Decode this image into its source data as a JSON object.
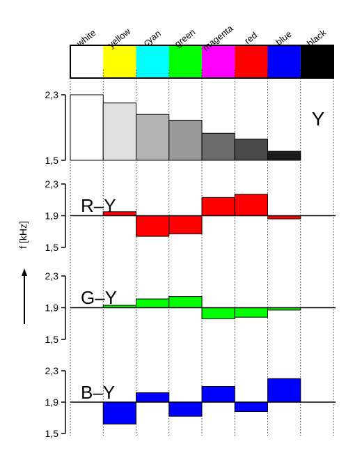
{
  "chart_data": {
    "type": "bar",
    "categories": [
      "white",
      "yellow",
      "cyan",
      "green",
      "magenta",
      "red",
      "blue",
      "black"
    ],
    "swatch_colors": [
      "#ffffff",
      "#ffff00",
      "#00ffff",
      "#00ff00",
      "#ff00ff",
      "#ff0000",
      "#0000ff",
      "#000000"
    ],
    "ylabel": "f [kHz]",
    "panels": [
      {
        "name": "Y",
        "label": "Y",
        "baseline": 1.5,
        "ylim": [
          1.5,
          2.3
        ],
        "yticks": [
          "2,3",
          "1,5"
        ],
        "values": [
          2.3,
          2.2,
          2.06,
          1.99,
          1.83,
          1.76,
          1.61,
          1.5
        ],
        "colors": [
          "#ffffff",
          "#e0e0e0",
          "#b3b3b3",
          "#999999",
          "#6b6b6b",
          "#4a4a4a",
          "#1c1c1c",
          "#000000"
        ]
      },
      {
        "name": "R-Y",
        "label": "R–Y",
        "baseline": 1.9,
        "ylim": [
          1.5,
          2.3
        ],
        "yticks": [
          "2,3",
          "1,9",
          "1,5"
        ],
        "values": [
          1.9,
          1.95,
          1.64,
          1.67,
          2.13,
          2.17,
          1.86,
          1.9
        ],
        "color": "#ff0000"
      },
      {
        "name": "G-Y",
        "label": "G–Y",
        "baseline": 1.9,
        "ylim": [
          1.5,
          2.3
        ],
        "yticks": [
          "2,3",
          "1,9",
          "1,5"
        ],
        "values": [
          1.9,
          1.93,
          2.01,
          2.04,
          1.76,
          1.78,
          1.87,
          1.9
        ],
        "color": "#00ff00"
      },
      {
        "name": "B-Y",
        "label": "B–Y",
        "baseline": 1.9,
        "ylim": [
          1.5,
          2.3
        ],
        "yticks": [
          "2,3",
          "1,9",
          "1,5"
        ],
        "values": [
          1.9,
          1.62,
          2.02,
          1.72,
          2.1,
          1.78,
          2.2,
          1.9
        ],
        "color": "#0000ff"
      }
    ]
  }
}
